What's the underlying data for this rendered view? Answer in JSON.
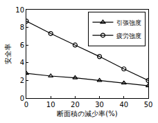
{
  "chart_data": {
    "type": "line",
    "x_label": "断面積の減少率(%)",
    "y_label": "安全率",
    "x": [
      0,
      10,
      20,
      30,
      40,
      50
    ],
    "series": [
      {
        "name": "引張強度",
        "color": "#000000",
        "marker": "triangle",
        "line_style": "solid",
        "values": [
          2.8,
          2.5,
          2.3,
          2.0,
          1.7,
          1.4
        ]
      },
      {
        "name": "疲労強度",
        "color": "#000000",
        "marker": "circle",
        "line_style": "solid",
        "values": [
          8.7,
          7.3,
          6.0,
          4.7,
          3.3,
          2.0
        ]
      }
    ],
    "xlim": [
      0,
      50
    ],
    "xticks": [
      0,
      10,
      20,
      30,
      40,
      50
    ],
    "ylim": [
      0,
      10
    ],
    "yticks": [
      0,
      2,
      4,
      6,
      8,
      10
    ],
    "grid": false,
    "legend": "upper right"
  }
}
